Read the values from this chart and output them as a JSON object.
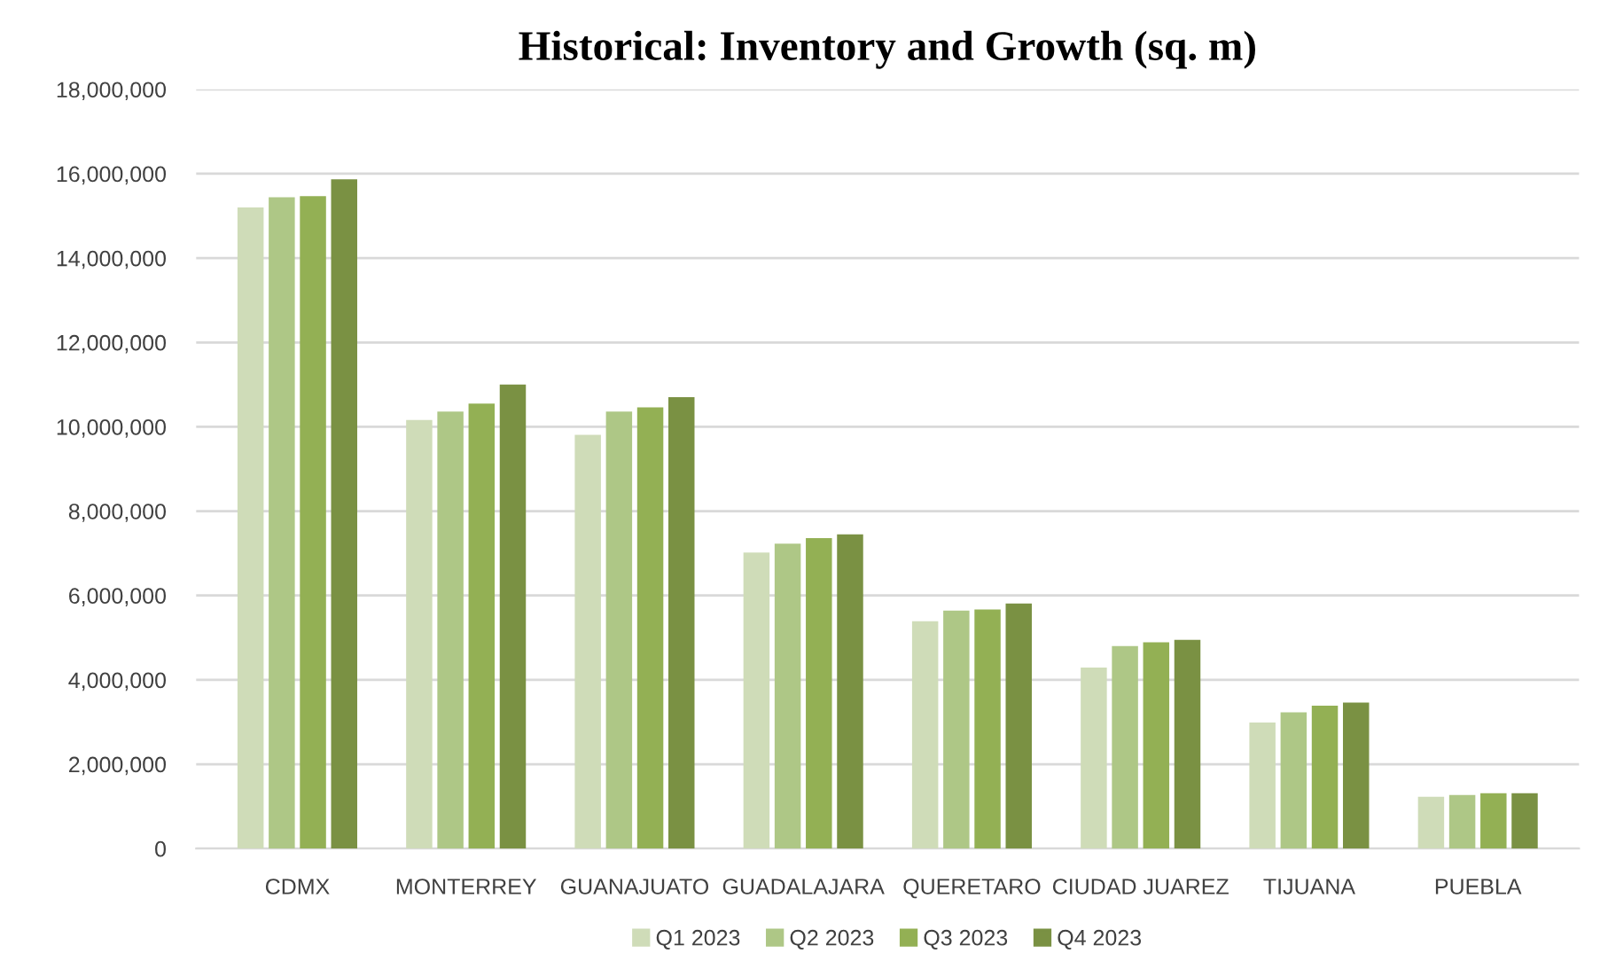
{
  "chart_data": {
    "type": "bar",
    "title": "Historical: Inventory and Growth (sq. m)",
    "categories": [
      "CDMX",
      "MONTERREY",
      "GUANAJUATO",
      "GUADALAJARA",
      "QUERETARO",
      "CIUDAD JUAREZ",
      "TIJUANA",
      "PUEBLA"
    ],
    "series": [
      {
        "name": "Q1 2023",
        "color": "#cfdcb8",
        "values": [
          15200000,
          10160000,
          9810000,
          7020000,
          5390000,
          4290000,
          2990000,
          1230000
        ]
      },
      {
        "name": "Q2 2023",
        "color": "#aec786",
        "values": [
          15440000,
          10360000,
          10360000,
          7230000,
          5640000,
          4800000,
          3230000,
          1270000
        ]
      },
      {
        "name": "Q3 2023",
        "color": "#93b054",
        "values": [
          15470000,
          10550000,
          10460000,
          7360000,
          5670000,
          4890000,
          3390000,
          1310000
        ]
      },
      {
        "name": "Q4 2023",
        "color": "#7a9143",
        "values": [
          15870000,
          11000000,
          10700000,
          7450000,
          5810000,
          4950000,
          3460000,
          1310000
        ]
      }
    ],
    "ylim": [
      0,
      18000000
    ],
    "yticks": [
      {
        "value": 0,
        "label": "0"
      },
      {
        "value": 2000000,
        "label": "2,000,000"
      },
      {
        "value": 4000000,
        "label": "4,000,000"
      },
      {
        "value": 6000000,
        "label": "6,000,000"
      },
      {
        "value": 8000000,
        "label": "8,000,000"
      },
      {
        "value": 10000000,
        "label": "10,000,000"
      },
      {
        "value": 12000000,
        "label": "12,000,000"
      },
      {
        "value": 14000000,
        "label": "14,000,000"
      },
      {
        "value": 16000000,
        "label": "16,000,000"
      },
      {
        "value": 18000000,
        "label": "18,000,000"
      }
    ],
    "grid": "y",
    "legend": "bottom"
  }
}
